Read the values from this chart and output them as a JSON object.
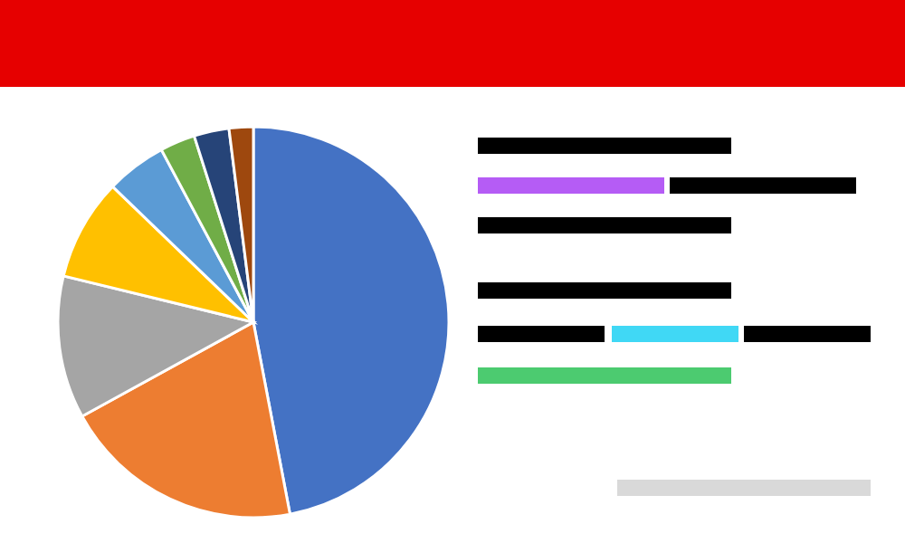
{
  "chart_data": {
    "type": "pie",
    "categories": [
      null,
      null,
      null,
      null,
      null,
      null,
      null,
      null
    ],
    "values": [
      47,
      20,
      11.8,
      8.4,
      5,
      2.9,
      2.9,
      2.0
    ],
    "colors": [
      "#4472c4",
      "#ed7d31",
      "#a5a5a5",
      "#ffc000",
      "#5b9bd5",
      "#70ad47",
      "#264478",
      "#9e480e"
    ]
  }
}
